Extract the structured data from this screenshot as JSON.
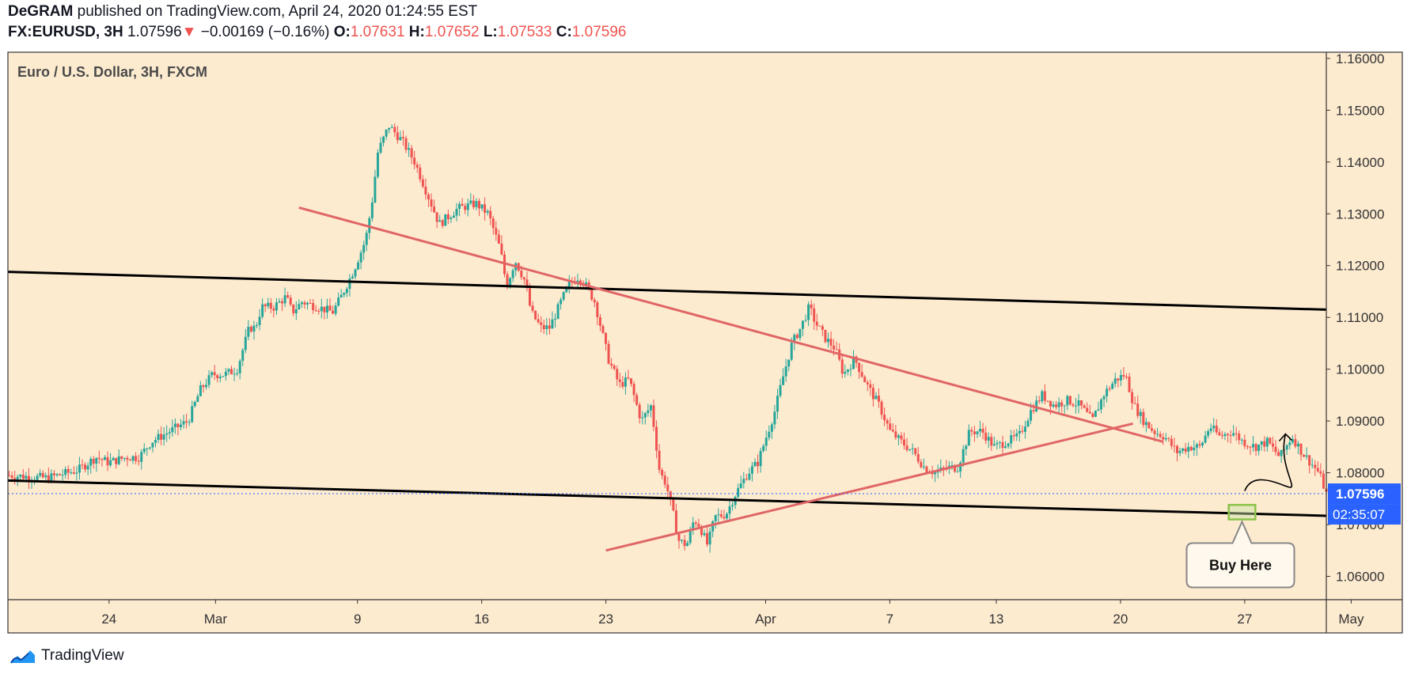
{
  "header": {
    "author": "DeGRAM",
    "published_text": "published on TradingView.com, April 24, 2020 01:24:55 EST",
    "symbol": "FX:EURUSD, 3H",
    "last": "1.07596",
    "change_arrow": "▼",
    "change": "−0.00169 (−0.16%)",
    "o_label": "O:",
    "o_value": "1.07631",
    "h_label": "H:",
    "h_value": "1.07652",
    "l_label": "L:",
    "l_value": "1.07533",
    "c_label": "C:",
    "c_value": "1.07596"
  },
  "footer": {
    "brand": "TradingView"
  },
  "chart_data": {
    "type": "candlestick",
    "title": "Euro / U.S. Dollar, 3H, FXCM",
    "price_axis": {
      "ticks": [
        "1.16000",
        "1.15000",
        "1.14000",
        "1.13000",
        "1.12000",
        "1.11000",
        "1.10000",
        "1.09000",
        "1.08000",
        "1.07000",
        "1.06000"
      ],
      "ylim": [
        1.0555,
        1.1612
      ]
    },
    "time_axis": {
      "labels": [
        "24",
        "Mar",
        "9",
        "16",
        "23",
        "Apr",
        "7",
        "13",
        "20",
        "27",
        "May"
      ],
      "label_day_index": [
        0,
        6,
        14,
        21,
        28,
        37,
        44,
        50,
        57,
        64,
        70
      ],
      "xlim": [
        -5.7,
        68.6
      ]
    },
    "last_price": {
      "value": 1.07596,
      "label": "1.07596",
      "countdown": "02:35:07"
    },
    "colors": {
      "background": "#fdebd0",
      "up": "#26a69a",
      "down": "#ef5350",
      "red_line": "#e06666",
      "black_line": "#000000",
      "badge": "#2962ff"
    },
    "path": [
      [
        -5.6,
        1.0795
      ],
      [
        -2.5,
        1.079
      ],
      [
        0,
        1.0805
      ],
      [
        1.5,
        1.083
      ],
      [
        2.5,
        1.082
      ],
      [
        4,
        1.083
      ],
      [
        5,
        1.083
      ],
      [
        6,
        1.086
      ],
      [
        7.5,
        1.088
      ],
      [
        9,
        1.09
      ],
      [
        10,
        1.096
      ],
      [
        11,
        1.099
      ],
      [
        12,
        1.099
      ],
      [
        13,
        1.1
      ],
      [
        14,
        1.108
      ],
      [
        14.5,
        1.108
      ],
      [
        15,
        1.112
      ],
      [
        16,
        1.112
      ],
      [
        17,
        1.114
      ],
      [
        17.5,
        1.111
      ],
      [
        18.3,
        1.113
      ],
      [
        19.6,
        1.112
      ],
      [
        20.8,
        1.111
      ],
      [
        21.5,
        1.114
      ],
      [
        22.5,
        1.119
      ],
      [
        23.5,
        1.125
      ],
      [
        24,
        1.132
      ],
      [
        24.5,
        1.142
      ],
      [
        25.4,
        1.147
      ],
      [
        26.5,
        1.144
      ],
      [
        27.5,
        1.14
      ],
      [
        28.5,
        1.134
      ],
      [
        29.5,
        1.128
      ],
      [
        31,
        1.131
      ],
      [
        32.5,
        1.132
      ],
      [
        33.5,
        1.13
      ],
      [
        34.5,
        1.123
      ],
      [
        35,
        1.116
      ],
      [
        35.7,
        1.121
      ],
      [
        36.5,
        1.117
      ],
      [
        37,
        1.111
      ],
      [
        37.8,
        1.108
      ],
      [
        38.5,
        1.108
      ],
      [
        40,
        1.116
      ],
      [
        40.9,
        1.118
      ],
      [
        41.5,
        1.116
      ],
      [
        42.2,
        1.113
      ],
      [
        43.3,
        1.102
      ],
      [
        44.2,
        1.097
      ],
      [
        45,
        1.098
      ],
      [
        46,
        1.09
      ],
      [
        46.8,
        1.093
      ],
      [
        47.5,
        1.08
      ],
      [
        48,
        1.078
      ],
      [
        48.6,
        1.072
      ],
      [
        49,
        1.067
      ],
      [
        49.7,
        1.066
      ],
      [
        50.3,
        1.071
      ],
      [
        50.7,
        1.07
      ],
      [
        51.4,
        1.066
      ],
      [
        52.0,
        1.0715
      ],
      [
        52.9,
        1.072
      ],
      [
        53.7,
        1.076
      ],
      [
        54.7,
        1.08
      ],
      [
        55.5,
        1.082
      ],
      [
        56.2,
        1.087
      ],
      [
        56.9,
        1.092
      ],
      [
        57.5,
        1.098
      ],
      [
        58.3,
        1.105
      ],
      [
        59,
        1.108
      ],
      [
        59.7,
        1.112
      ],
      [
        60.2,
        1.109
      ],
      [
        61,
        1.106
      ],
      [
        61.8,
        1.104
      ],
      [
        62.5,
        1.099
      ],
      [
        63.4,
        1.102
      ],
      [
        64.4,
        1.097
      ],
      [
        65.4,
        1.093
      ],
      [
        66.3,
        1.088
      ],
      [
        67.2,
        1.086
      ],
      [
        68.2,
        1.084
      ],
      [
        69.1,
        1.081
      ],
      [
        70.0,
        1.08
      ],
      [
        71,
        1.081
      ],
      [
        71.8,
        1.081
      ],
      [
        72.8,
        1.088
      ],
      [
        73.8,
        1.088
      ],
      [
        74.8,
        1.085
      ],
      [
        75.8,
        1.086
      ],
      [
        76.8,
        1.087
      ],
      [
        77.8,
        1.092
      ],
      [
        78.7,
        1.095
      ],
      [
        79.7,
        1.093
      ],
      [
        80.8,
        1.094
      ],
      [
        81.8,
        1.093
      ],
      [
        82.8,
        1.09
      ],
      [
        83.7,
        1.095
      ],
      [
        84.7,
        1.098
      ],
      [
        85.5,
        1.099
      ],
      [
        86.2,
        1.093
      ],
      [
        87.0,
        1.09
      ],
      [
        87.8,
        1.088
      ],
      [
        88.7,
        1.087
      ],
      [
        89.7,
        1.084
      ],
      [
        90.7,
        1.085
      ],
      [
        91.6,
        1.085
      ],
      [
        92.4,
        1.089
      ],
      [
        93.2,
        1.087
      ],
      [
        94.2,
        1.088
      ],
      [
        95.1,
        1.086
      ],
      [
        96.1,
        1.085
      ],
      [
        97.1,
        1.086
      ],
      [
        98.1,
        1.083
      ],
      [
        99.1,
        1.087
      ],
      [
        99.9,
        1.084
      ],
      [
        100.6,
        1.082
      ],
      [
        101.3,
        1.08
      ],
      [
        101.9,
        1.07596
      ]
    ],
    "annotations": {
      "black_line_upper": [
        [
          -5.7,
          1.1188
        ],
        [
          68.6,
          1.1115
        ]
      ],
      "black_line_lower": [
        [
          -5.7,
          1.0785
        ],
        [
          68.6,
          1.0717
        ]
      ],
      "red_line_descending": [
        [
          10.7,
          1.1312
        ],
        [
          59.4,
          1.086
        ]
      ],
      "red_line_ascending": [
        [
          28.0,
          1.065
        ],
        [
          57.7,
          1.0895
        ]
      ],
      "buy_zone": [
        [
          63.1,
          1.0738
        ],
        [
          64.6,
          1.071
        ]
      ],
      "arrow_path": [
        [
          64.0,
          1.0765
        ],
        [
          66.3,
          1.0875
        ]
      ],
      "callout_text": "Buy Here"
    }
  }
}
